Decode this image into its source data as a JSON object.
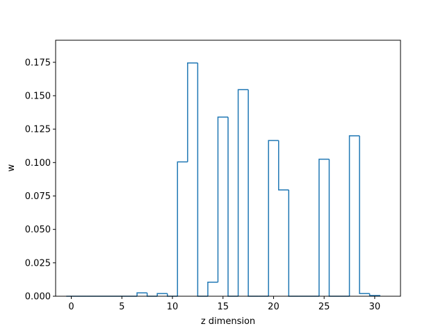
{
  "chart_data": {
    "type": "bar",
    "style": "step-histogram",
    "title": "",
    "xlabel": "z dimension",
    "ylabel": "w",
    "xlim": [
      -1.55,
      32.55
    ],
    "ylim": [
      0,
      0.1915
    ],
    "xticks": [
      0,
      5,
      10,
      15,
      20,
      25,
      30
    ],
    "yticks": [
      0.0,
      0.025,
      0.05,
      0.075,
      0.1,
      0.125,
      0.15,
      0.175
    ],
    "ytick_labels": [
      "0.000",
      "0.025",
      "0.050",
      "0.075",
      "0.100",
      "0.125",
      "0.150",
      "0.175"
    ],
    "xtick_labels": [
      "0",
      "5",
      "10",
      "15",
      "20",
      "25",
      "30"
    ],
    "bin_edges": [
      0,
      1,
      2,
      3,
      4,
      5,
      6,
      7,
      8,
      9,
      10,
      11,
      12,
      13,
      14,
      15,
      16,
      17,
      18,
      19,
      20,
      21,
      22,
      23,
      24,
      25,
      26,
      27,
      28,
      29,
      30,
      31
    ],
    "values": [
      0,
      0,
      0,
      0,
      0,
      0,
      0,
      0.0025,
      0,
      0.002,
      0,
      0.1005,
      0.1745,
      0,
      0.0105,
      0.134,
      0,
      0.1545,
      0,
      0,
      0.1165,
      0.0795,
      0,
      0,
      0,
      0.1025,
      0,
      0,
      0.12,
      0.002,
      0.0005
    ],
    "step_offset": -0.5,
    "line_color": "#1f77b4",
    "grid": false,
    "legend": "none"
  }
}
